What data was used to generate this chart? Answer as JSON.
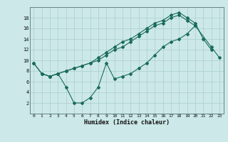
{
  "title": "",
  "xlabel": "Humidex (Indice chaleur)",
  "bg_color": "#cce8e8",
  "line_color": "#1a6b5a",
  "grid_color": "#aacfcf",
  "line1_x": [
    0,
    1,
    2,
    3,
    4,
    5,
    6,
    7,
    8,
    9,
    10,
    11,
    12,
    13,
    14,
    15,
    16,
    17,
    18,
    19,
    20,
    21,
    22
  ],
  "line1_y": [
    9.5,
    7.5,
    7.0,
    7.5,
    8.0,
    8.5,
    9.0,
    9.5,
    10.5,
    11.5,
    12.5,
    13.5,
    14.0,
    15.0,
    16.0,
    17.0,
    17.5,
    18.5,
    19.0,
    18.0,
    17.0,
    14.0,
    12.0
  ],
  "line2_x": [
    1,
    2,
    3,
    4,
    5,
    6,
    7,
    8,
    9,
    10,
    11,
    12,
    13,
    14,
    15,
    16,
    17,
    18,
    19,
    20
  ],
  "line2_y": [
    7.5,
    7.0,
    7.5,
    5.0,
    2.0,
    2.0,
    3.0,
    5.0,
    9.5,
    6.5,
    7.0,
    7.5,
    8.5,
    9.5,
    11.0,
    12.5,
    13.5,
    14.0,
    15.0,
    16.5
  ],
  "line3_x": [
    0,
    1,
    2,
    3,
    4,
    5,
    6,
    7,
    8,
    9,
    10,
    11,
    12,
    13,
    14,
    15,
    16,
    17,
    18,
    19,
    20,
    22,
    23
  ],
  "line3_y": [
    9.5,
    7.5,
    7.0,
    7.5,
    8.0,
    8.5,
    9.0,
    9.5,
    10.0,
    11.0,
    12.0,
    12.5,
    13.5,
    14.5,
    15.5,
    16.5,
    17.0,
    18.0,
    18.5,
    17.5,
    16.5,
    12.5,
    10.5
  ],
  "xlim": [
    -0.5,
    23.5
  ],
  "ylim": [
    0,
    20
  ],
  "xticks": [
    0,
    1,
    2,
    3,
    4,
    5,
    6,
    7,
    8,
    9,
    10,
    11,
    12,
    13,
    14,
    15,
    16,
    17,
    18,
    19,
    20,
    21,
    22,
    23
  ],
  "yticks": [
    2,
    4,
    6,
    8,
    10,
    12,
    14,
    16,
    18
  ]
}
